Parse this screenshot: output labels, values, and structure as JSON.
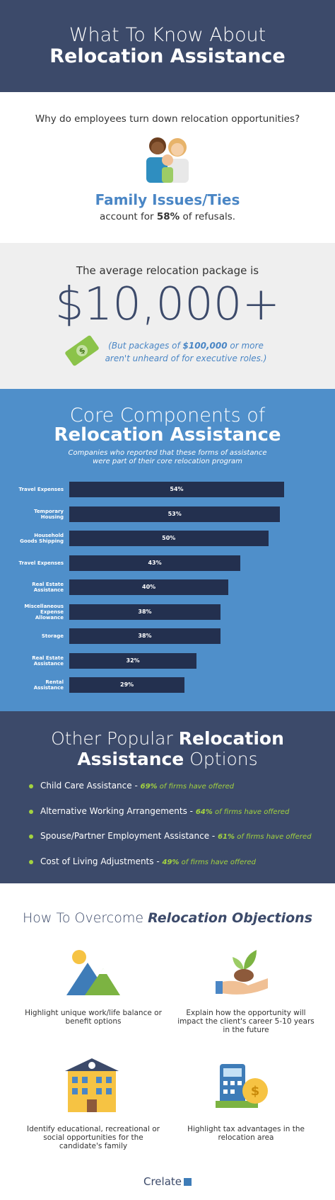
{
  "header": {
    "line1": "What To Know About",
    "line2": "Relocation Assistance"
  },
  "refusals": {
    "question": "Why do employees turn down relocation opportunities?",
    "heading": "Family Issues/Ties",
    "text_before": "account for",
    "percent": "58%",
    "text_after": "of refusals."
  },
  "package": {
    "intro": "The average relocation package is",
    "amount": "$10,000+",
    "note_before": "(But packages of",
    "note_amount": "$100,000",
    "note_after": "or more aren't unheard of for executive roles.)"
  },
  "core": {
    "title_line1": "Core Components of",
    "title_line2": "Relocation Assistance",
    "subtitle": "Companies who reported that these forms of assistance were part of their core relocation program",
    "chart_data": {
      "type": "bar",
      "orientation": "horizontal",
      "color": "#23304f",
      "categories": [
        "Travel Expenses",
        "Temporary Housing",
        "Household Goods Shipping",
        "Travel Expenses",
        "Real Estate Assistance",
        "Miscellaneous Expense Allowance",
        "Storage",
        "Real Estate Assistance",
        "Rental Assistance"
      ],
      "values": [
        54,
        53,
        50,
        43,
        40,
        38,
        38,
        32,
        29
      ],
      "value_labels": [
        "54%",
        "53%",
        "50%",
        "43%",
        "40%",
        "38%",
        "38%",
        "32%",
        "29%"
      ]
    }
  },
  "options": {
    "title_light1": "Other Popular",
    "title_bold1": "Relocation",
    "title_bold2": "Assistance",
    "title_light2": "Options",
    "items": [
      {
        "name": "Child Care Assistance -",
        "percent": "69%",
        "rest": "of firms have offered"
      },
      {
        "name": "Alternative Working Arrangements -",
        "percent": "64%",
        "rest": "of firms have offered"
      },
      {
        "name": "Spouse/Partner Employment Assistance -",
        "percent": "61%",
        "rest": "of firms have offered"
      },
      {
        "name": "Cost of Living Adjustments -",
        "percent": "49%",
        "rest": "of firms have offered"
      }
    ]
  },
  "objections": {
    "title_light": "How To Overcome",
    "title_bold": "Relocation Objections",
    "items": [
      "Highlight unique work/life balance or benefit options",
      "Explain how the opportunity will impact the client's career 5-10 years in the future",
      "Identify educational, recreational or social opportunities for the candidate's family",
      "Highlight tax advantages in the relocation area"
    ]
  },
  "footer": {
    "brand": "Crelate"
  }
}
